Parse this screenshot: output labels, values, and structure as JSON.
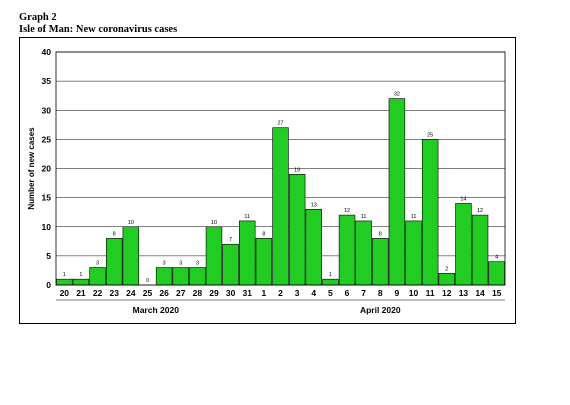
{
  "header": {
    "graph_label": "Graph 2",
    "title": "Isle of Man: New coronavirus cases"
  },
  "chart_data": {
    "type": "bar",
    "title": "Isle of Man: New coronavirus cases",
    "ylabel": "Number of new cases",
    "xlabel": "",
    "ylim": [
      0,
      40
    ],
    "yticks": [
      0,
      5,
      10,
      15,
      20,
      25,
      30,
      35,
      40
    ],
    "grid": true,
    "bar_color": "#22cc22",
    "categories": [
      "20",
      "21",
      "22",
      "23",
      "24",
      "25",
      "26",
      "27",
      "28",
      "29",
      "30",
      "31",
      "1",
      "2",
      "3",
      "4",
      "5",
      "6",
      "7",
      "8",
      "9",
      "10",
      "11",
      "12",
      "13",
      "14",
      "15"
    ],
    "values": [
      1,
      1,
      3,
      8,
      10,
      0,
      3,
      3,
      3,
      10,
      7,
      11,
      8,
      27,
      19,
      13,
      1,
      12,
      11,
      8,
      32,
      11,
      25,
      2,
      14,
      12,
      4
    ],
    "month_labels": [
      {
        "label": "March 2020",
        "start_index": 0,
        "end_index": 11
      },
      {
        "label": "April 2020",
        "start_index": 12,
        "end_index": 26
      }
    ]
  }
}
